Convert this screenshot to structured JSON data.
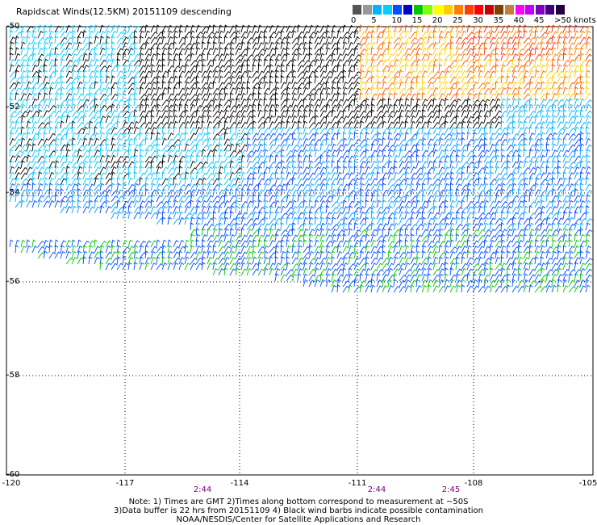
{
  "title": "Rapidscat Winds(12.5KM) 20151109 descending",
  "legend": {
    "labels": [
      "0",
      "5",
      "10",
      "15",
      "20",
      "25",
      "30",
      "35",
      "40",
      "45",
      ">50 knots"
    ],
    "colors": [
      "#555555",
      "#999999",
      "#00b4ff",
      "#00d0ff",
      "#0050ff",
      "#0000c8",
      "#00c800",
      "#80ff00",
      "#ffff00",
      "#ffcc00",
      "#ff8000",
      "#ff4000",
      "#ff0000",
      "#c80000",
      "#804000",
      "#c08040",
      "#ff00ff",
      "#c000ff",
      "#8000c0",
      "#400080",
      "#200040"
    ]
  },
  "latitudes": [
    "-50",
    "-52",
    "-54",
    "-56",
    "-58",
    "-60"
  ],
  "longitudes": [
    "-120",
    "-117",
    "-114",
    "-111",
    "-108",
    "-105"
  ],
  "times": [
    "2:44",
    "2:44",
    "2:45"
  ],
  "notes": {
    "line1": "Note: 1) Times are GMT 2)Times along bottom correspond to measurement at ~50S",
    "line2": "3)Data buffer is 22 hrs from 20151109 4) Black wind barbs indicate possible contamination",
    "line3": "NOAA/NESDIS/Center for Satellite Applications and Research"
  }
}
